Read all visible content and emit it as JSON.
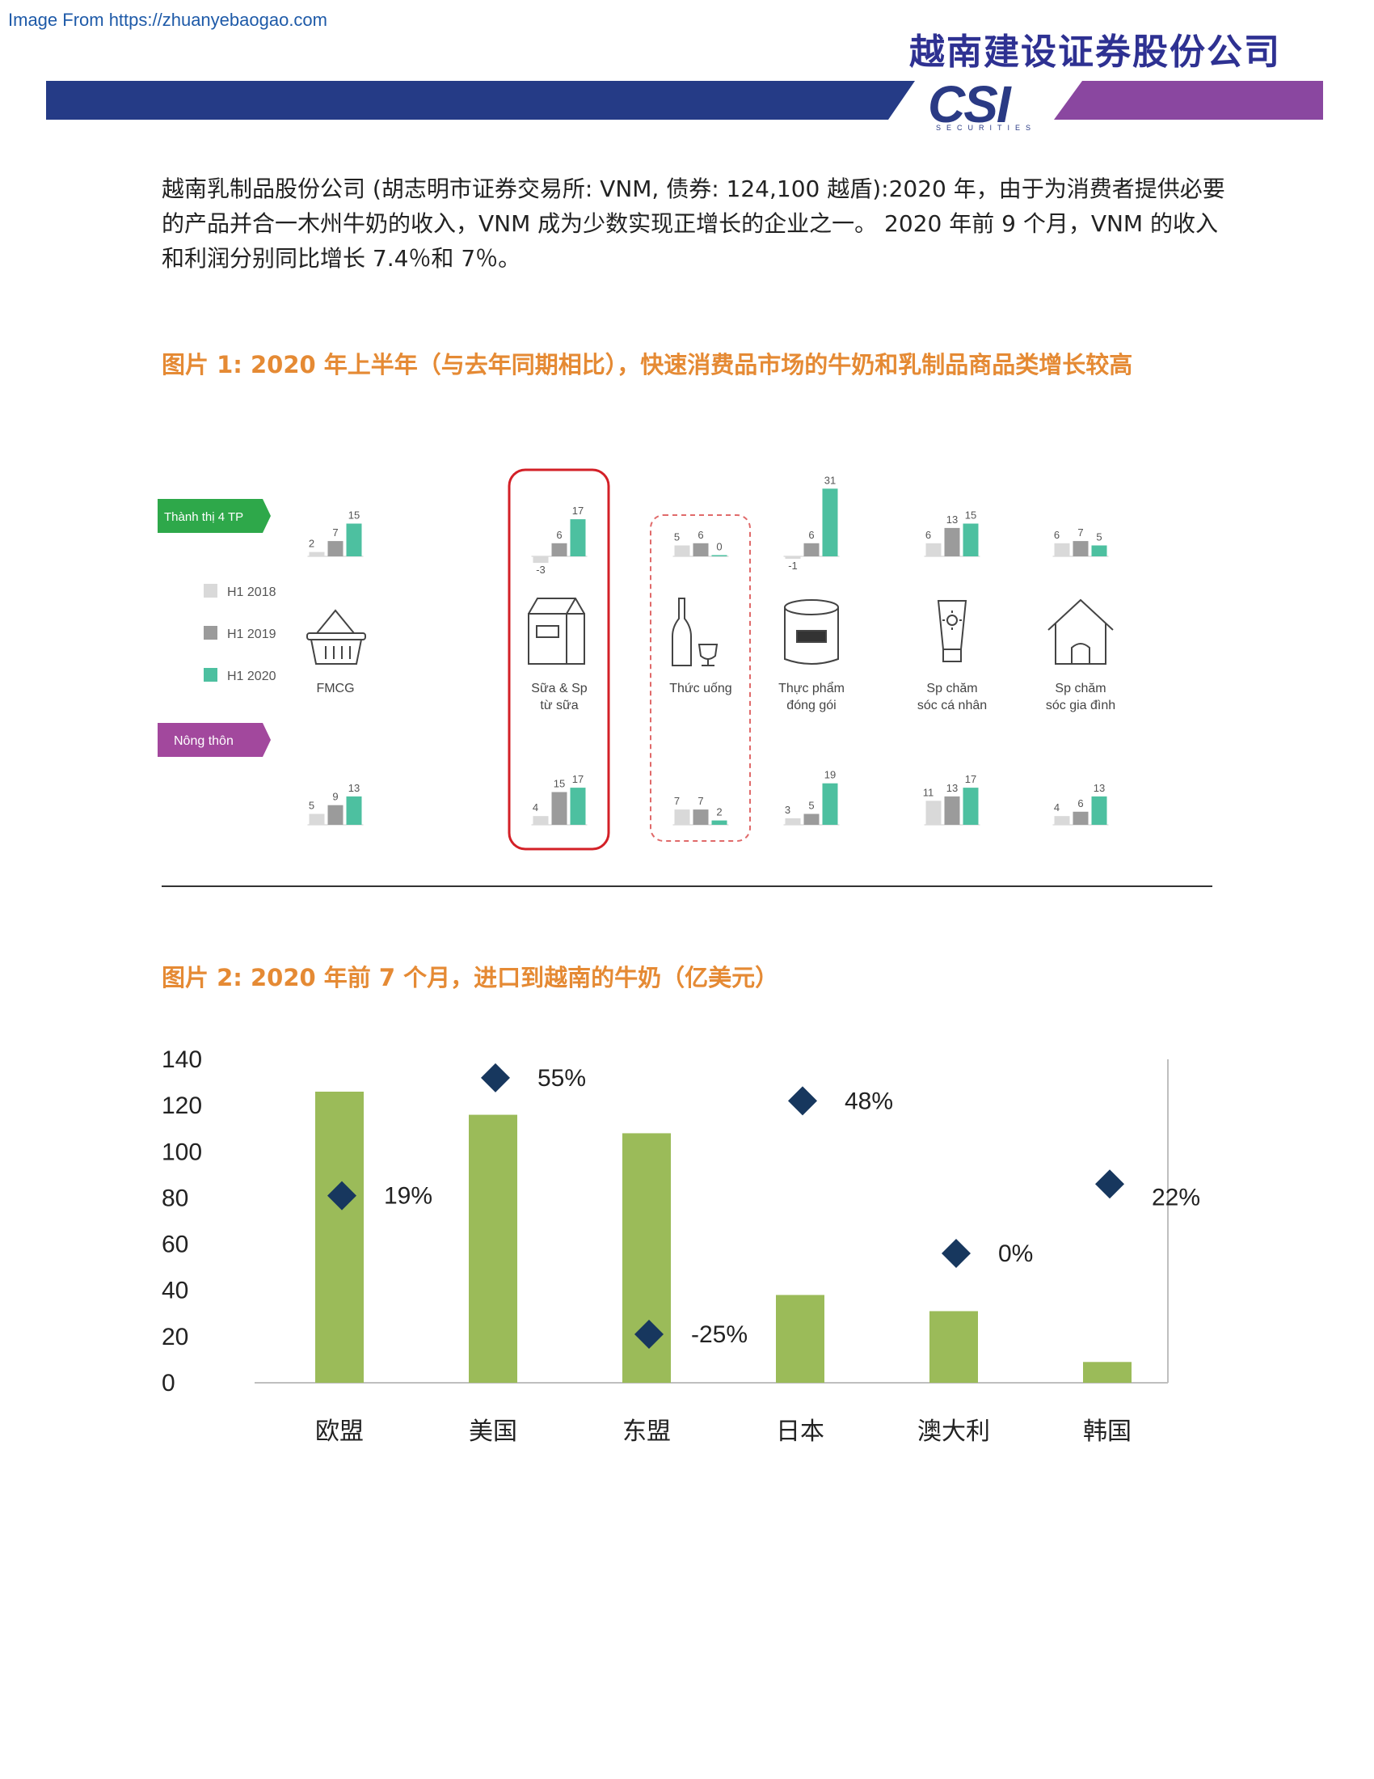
{
  "header": {
    "source_link": "Image From https://zhuanyebaogao.com",
    "company_name": "越南建设证券股份公司",
    "logo": {
      "text": "CSI",
      "subtext": "SECURITIES"
    },
    "colors": {
      "banner_blue": "#253b86",
      "banner_purple": "#8a47a0"
    }
  },
  "intro": {
    "text": "越南乳制品股份公司 (胡志明市证券交易所: VNM, 债券: 124,100 越盾):2020 年，由于为消费者提供必要的产品并合一木州牛奶的收入，VNM 成为少数实现正增长的企业之一。 2020 年前 9 个月，VNM 的收入和利润分别同比增长 7.4％和 7％。"
  },
  "figure1": {
    "title": "图片 1: 2020 年上半年（与去年同期相比），快速消费品市场的牛奶和乳制品商品类增长较高",
    "urban_tag": "Thành thị 4 TP",
    "rural_tag": "Nông thôn",
    "legend": [
      "H1 2018",
      "H1 2019",
      "H1 2020"
    ],
    "colors": {
      "h1_2018": "#d9d9d9",
      "h1_2019": "#9b9b9b",
      "h1_2020": "#4dc0a0",
      "urban_tag": "#2ea84a",
      "rural_tag": "#a2489d",
      "highlight": "#d32027"
    },
    "categories": [
      {
        "label": "FMCG",
        "icon": "basket-icon",
        "urban": [
          2,
          7,
          15
        ],
        "rural": [
          5,
          9,
          13
        ]
      },
      {
        "label": "Sữa & Sp từ sữa",
        "icon": "milk-carton-icon",
        "urban": [
          -3,
          6,
          17
        ],
        "rural": [
          4,
          15,
          17
        ]
      },
      {
        "label": "Thức uống",
        "icon": "bottle-glass-icon",
        "urban": [
          5,
          6,
          0
        ],
        "rural": [
          7,
          7,
          2
        ]
      },
      {
        "label": "Thực phẩm đóng gói",
        "icon": "canned-food-icon",
        "urban": [
          -1,
          6,
          31
        ],
        "rural": [
          3,
          5,
          19
        ]
      },
      {
        "label": "Sp chăm sóc cá nhân",
        "icon": "lotion-tube-icon",
        "urban": [
          6,
          13,
          15
        ],
        "rural": [
          11,
          13,
          17
        ]
      },
      {
        "label": "Sp chăm sóc gia đình",
        "icon": "house-icon",
        "urban": [
          6,
          7,
          5
        ],
        "rural": [
          4,
          6,
          13
        ]
      }
    ]
  },
  "figure2": {
    "title": "图片 2: 2020 年前 7 个月，进口到越南的牛奶（亿美元）"
  },
  "chart_data": [
    {
      "type": "bar",
      "title": "图片 1: 2020 年上半年（与去年同期相比），快速消费品市场的牛奶和乳制品商品类增长较高",
      "panel": "Thành thị 4 TP",
      "categories": [
        "FMCG",
        "Sữa & Sp từ sữa",
        "Thức uống",
        "Thực phẩm đóng gói",
        "Sp chăm sóc cá nhân",
        "Sp chăm sóc gia đình"
      ],
      "series": [
        {
          "name": "H1 2018",
          "values": [
            2,
            -3,
            5,
            -1,
            6,
            6
          ]
        },
        {
          "name": "H1 2019",
          "values": [
            7,
            6,
            6,
            6,
            13,
            7
          ]
        },
        {
          "name": "H1 2020",
          "values": [
            15,
            17,
            0,
            31,
            15,
            5
          ]
        }
      ]
    },
    {
      "type": "bar",
      "panel": "Nông thôn",
      "categories": [
        "FMCG",
        "Sữa & Sp từ sữa",
        "Thức uống",
        "Thực phẩm đóng gói",
        "Sp chăm sóc cá nhân",
        "Sp chăm sóc gia đình"
      ],
      "series": [
        {
          "name": "H1 2018",
          "values": [
            5,
            4,
            7,
            3,
            11,
            4
          ]
        },
        {
          "name": "H1 2019",
          "values": [
            9,
            15,
            7,
            5,
            13,
            6
          ]
        },
        {
          "name": "H1 2020",
          "values": [
            13,
            17,
            2,
            19,
            17,
            13
          ]
        }
      ]
    },
    {
      "type": "bar",
      "title": "图片 2: 2020 年前 7 个月，进口到越南的牛奶（亿美元）",
      "categories": [
        "欧盟",
        "美国",
        "东盟",
        "日本",
        "澳大利",
        "韩国"
      ],
      "series": [
        {
          "values": [
            126,
            116,
            108,
            38,
            31,
            9
          ]
        }
      ],
      "growth": {
        "values": [
          81,
          132,
          21,
          122,
          56,
          86
        ],
        "labels": [
          "19%",
          "55%",
          "-25%",
          "48%",
          "0%",
          "22%"
        ]
      },
      "ylim": [
        0,
        140
      ],
      "yticks": [
        0,
        20,
        40,
        60,
        80,
        100,
        120,
        140
      ],
      "colors": {
        "bar": "#9bbb59",
        "marker": "#17375e"
      },
      "grid": false
    }
  ]
}
